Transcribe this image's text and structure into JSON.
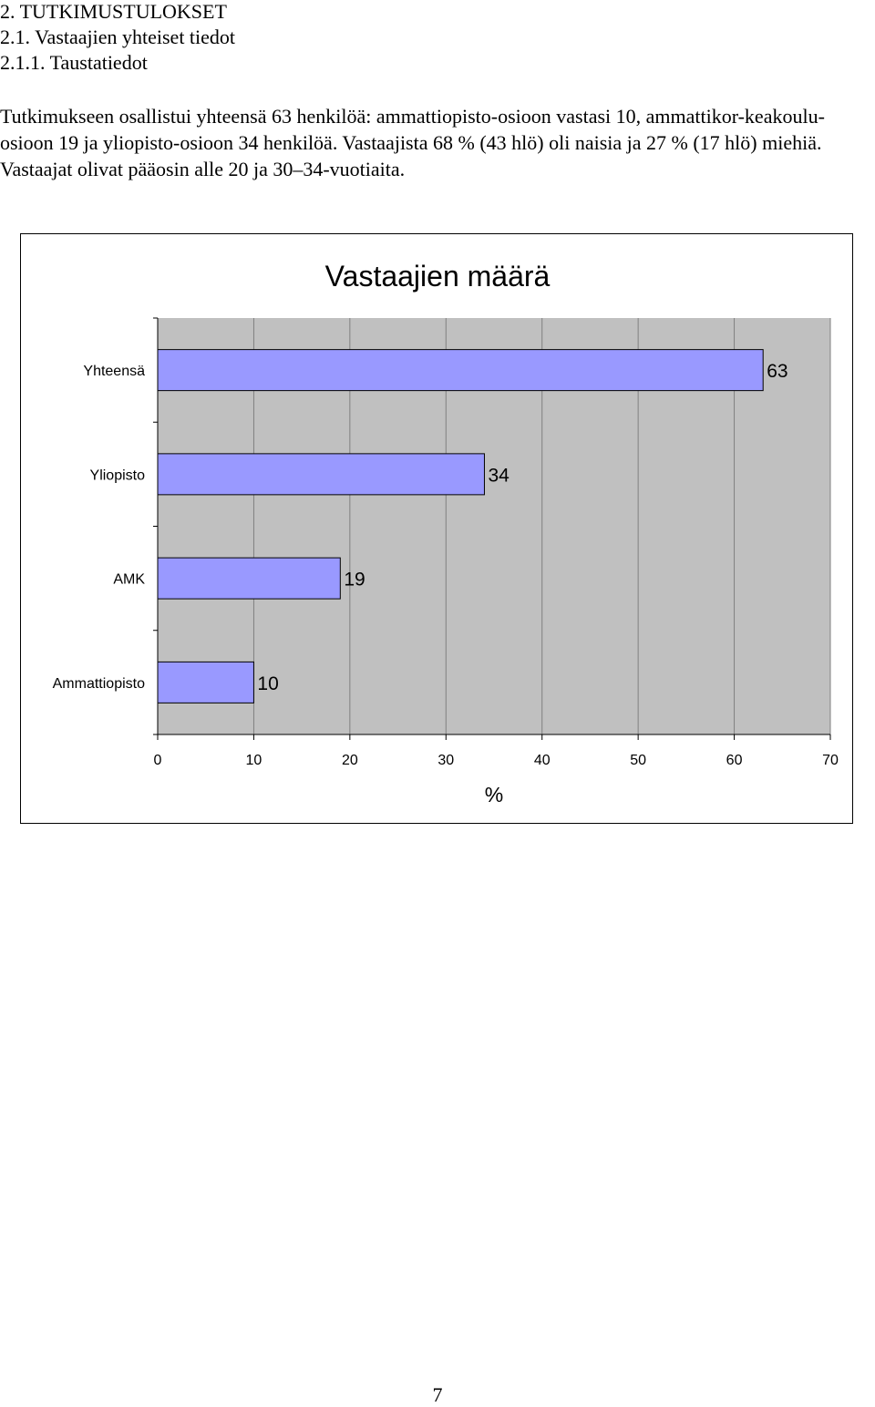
{
  "headings": {
    "h1": "2. TUTKIMUSTULOKSET",
    "h2": "2.1. Vastaajien yhteiset tiedot",
    "h3": "2.1.1. Taustatiedot"
  },
  "paragraph": "Tutkimukseen osallistui yhteensä 63 henkilöä: ammattiopisto-osioon vastasi 10, ammattikor-keakoulu-osioon 19 ja yliopisto-osioon 34 henkilöä. Vastaajista 68 % (43 hlö) oli naisia ja 27 % (17 hlö) miehiä. Vastaajat olivat pääosin alle 20 ja 30–34-vuotiaita.",
  "chart_data": {
    "type": "bar",
    "orientation": "horizontal",
    "title": "Vastaajien määrä",
    "xlabel": "%",
    "ylabel": "",
    "categories": [
      "Yhteensä",
      "Yliopisto",
      "AMK",
      "Ammattiopisto"
    ],
    "values": [
      63,
      34,
      19,
      10
    ],
    "xlim": [
      0,
      70
    ],
    "xticks": [
      "0",
      "10",
      "20",
      "30",
      "40",
      "50",
      "60",
      "70"
    ],
    "grid": true,
    "legend": "none",
    "colors": {
      "bar": "#9999ff",
      "plot_bg": "#c0c0c0",
      "grid": "#808080"
    }
  },
  "page_number": "7"
}
